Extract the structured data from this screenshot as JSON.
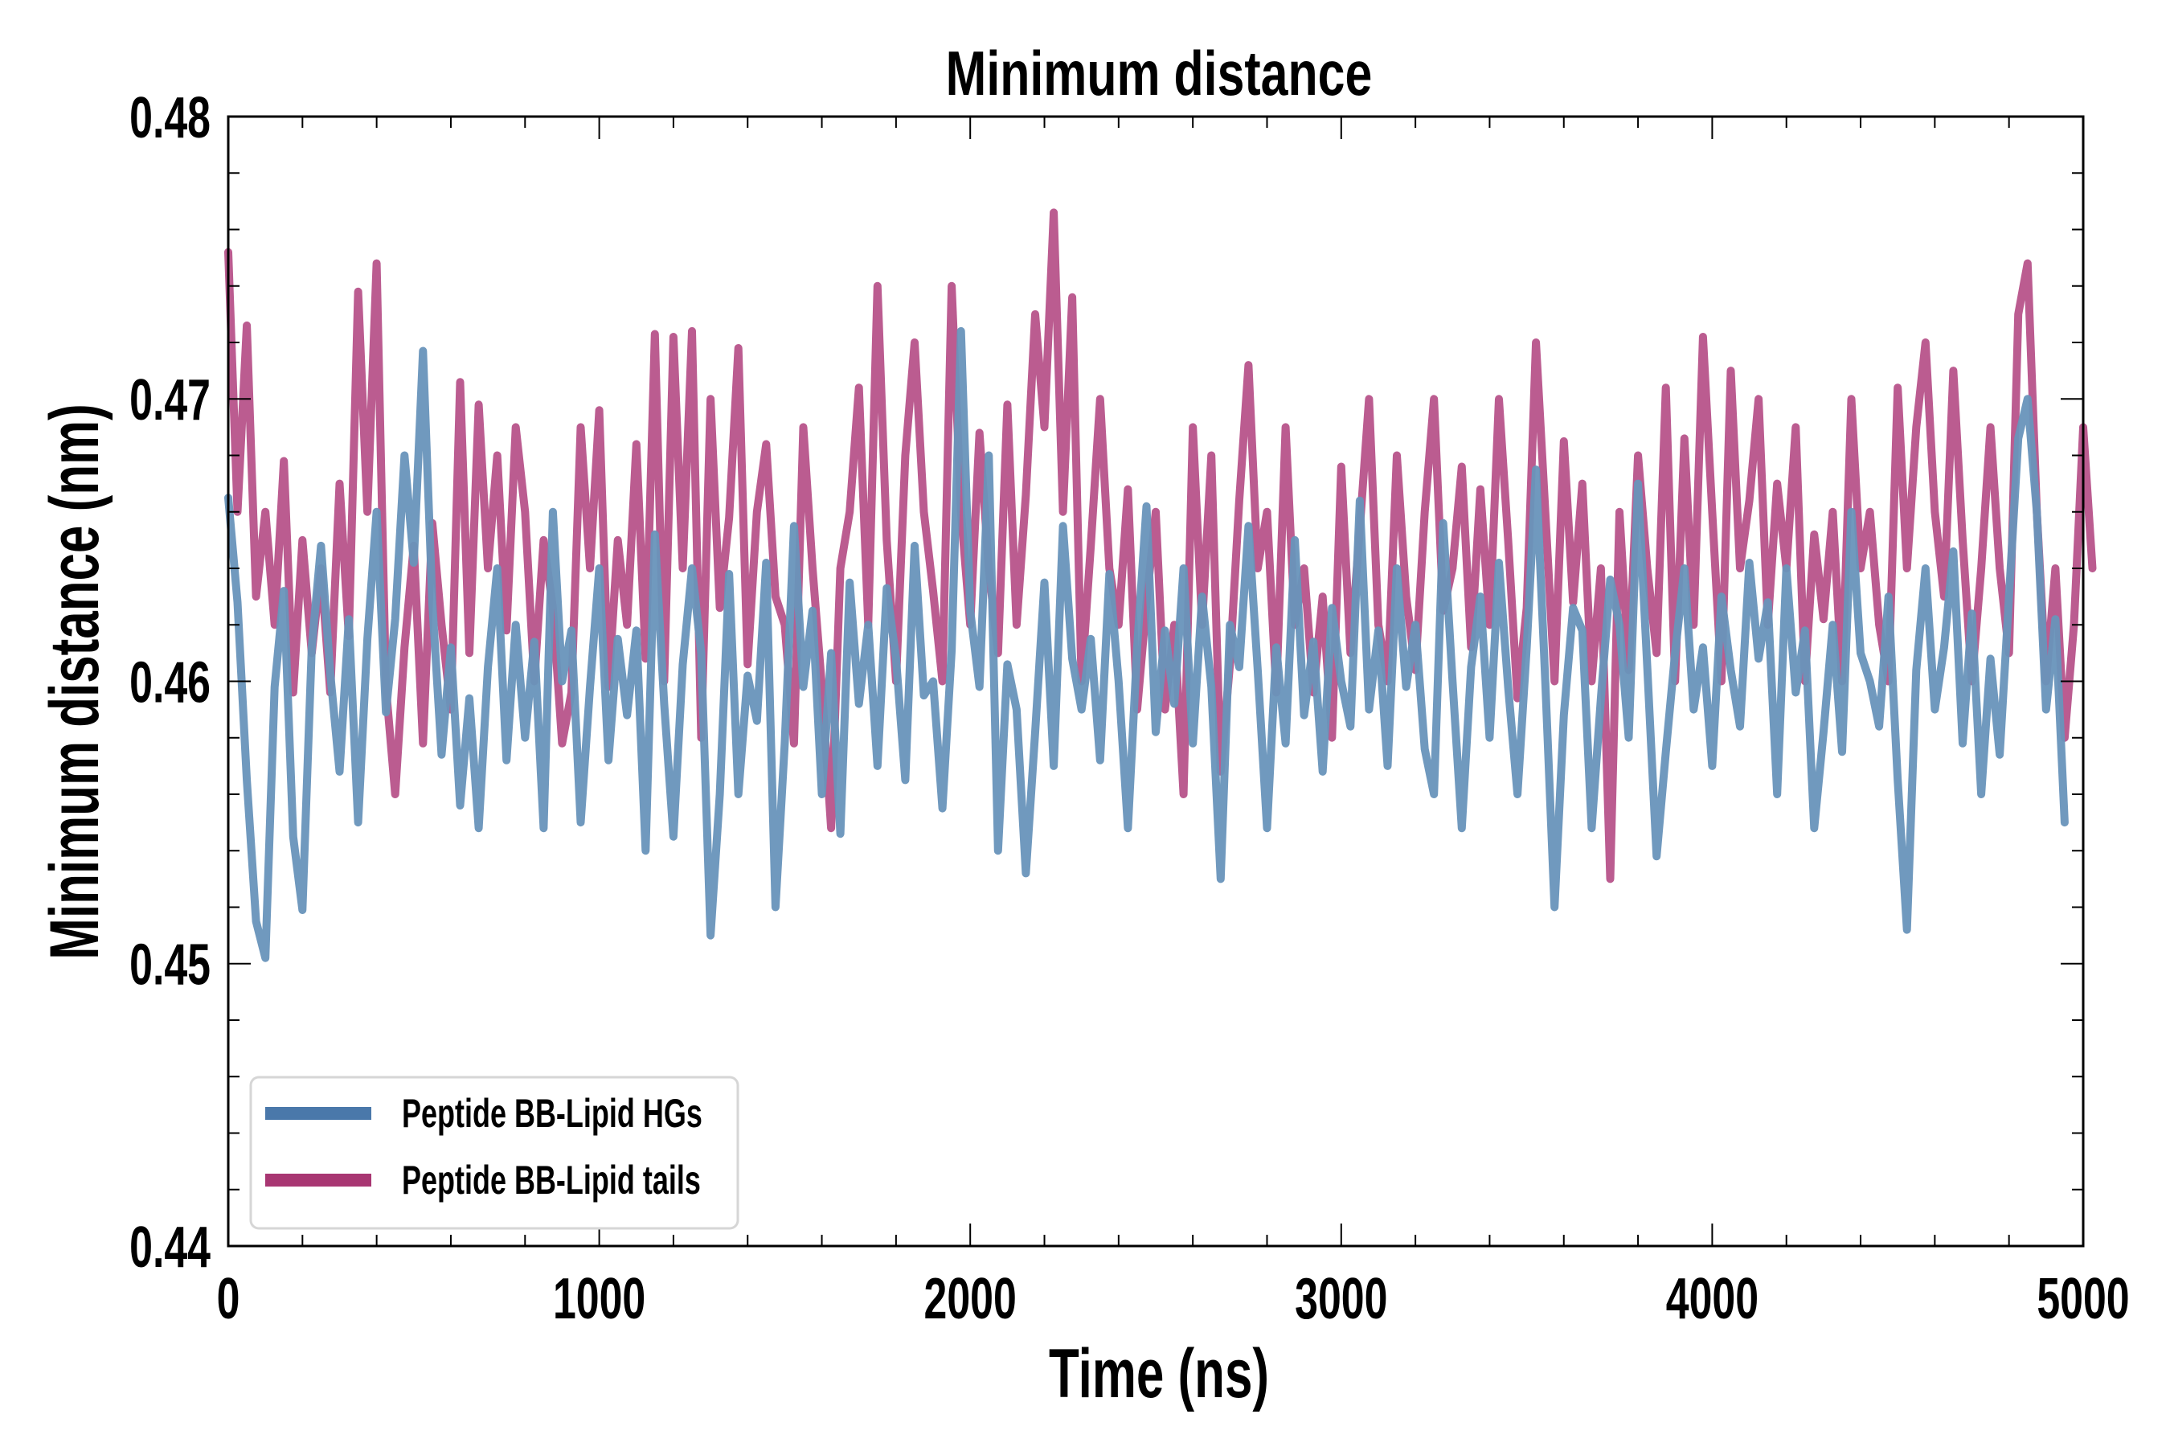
{
  "chart_data": {
    "type": "line",
    "title": "Minimum distance",
    "xlabel": "Time (ns)",
    "ylabel": "Minimum distance (nm)",
    "xlim": [
      0,
      5000
    ],
    "ylim": [
      0.44,
      0.48
    ],
    "xticks": [
      0,
      1000,
      2000,
      3000,
      4000,
      5000
    ],
    "xtick_labels": [
      "0",
      "1000",
      "2000",
      "3000",
      "4000",
      "5000"
    ],
    "yticks": [
      0.44,
      0.45,
      0.46,
      0.47,
      0.48
    ],
    "ytick_labels": [
      "0.44",
      "0.45",
      "0.46",
      "0.47",
      "0.48"
    ],
    "x_minor_step": 200,
    "y_minor_step": 0.002,
    "grid": false,
    "legend_position": "bottom-left",
    "x_step": 25,
    "series": [
      {
        "name": "Peptide BB-Lipid HGs",
        "color": "#4a78aa",
        "line_color": "#6893bb",
        "values": [
          0.4665,
          0.4628,
          0.4565,
          0.4515,
          0.4502,
          0.4598,
          0.4632,
          0.4545,
          0.4519,
          0.4612,
          0.4648,
          0.4603,
          0.4568,
          0.4622,
          0.455,
          0.4615,
          0.466,
          0.4589,
          0.4622,
          0.468,
          0.4642,
          0.4717,
          0.4628,
          0.4574,
          0.4612,
          0.4556,
          0.4594,
          0.4548,
          0.4605,
          0.464,
          0.4572,
          0.462,
          0.458,
          0.4614,
          0.4548,
          0.466,
          0.46,
          0.4618,
          0.455,
          0.4598,
          0.464,
          0.4572,
          0.4615,
          0.4588,
          0.4618,
          0.454,
          0.4652,
          0.4592,
          0.4545,
          0.4606,
          0.464,
          0.461,
          0.451,
          0.456,
          0.4638,
          0.456,
          0.4602,
          0.4586,
          0.4642,
          0.452,
          0.4578,
          0.4655,
          0.4598,
          0.4625,
          0.456,
          0.461,
          0.4546,
          0.4635,
          0.4592,
          0.462,
          0.457,
          0.4633,
          0.4608,
          0.4565,
          0.4648,
          0.4595,
          0.46,
          0.4555,
          0.4611,
          0.4724,
          0.4625,
          0.4598,
          0.468,
          0.454,
          0.4606,
          0.459,
          0.4532,
          0.4582,
          0.4635,
          0.457,
          0.4655,
          0.4608,
          0.459,
          0.4615,
          0.4572,
          0.4638,
          0.46,
          0.4548,
          0.4612,
          0.4662,
          0.4582,
          0.4618,
          0.4592,
          0.464,
          0.4578,
          0.463,
          0.4598,
          0.453,
          0.462,
          0.4605,
          0.4655,
          0.4604,
          0.4548,
          0.4612,
          0.4578,
          0.465,
          0.4588,
          0.4614,
          0.4568,
          0.4626,
          0.46,
          0.4584,
          0.4664,
          0.459,
          0.4618,
          0.457,
          0.464,
          0.4598,
          0.462,
          0.4576,
          0.456,
          0.4656,
          0.46,
          0.4548,
          0.4605,
          0.463,
          0.458,
          0.4642,
          0.4598,
          0.456,
          0.4612,
          0.4675,
          0.46,
          0.452,
          0.4588,
          0.4626,
          0.4618,
          0.4548,
          0.4594,
          0.4636,
          0.462,
          0.458,
          0.467,
          0.4605,
          0.4538,
          0.4575,
          0.461,
          0.464,
          0.459,
          0.4612,
          0.457,
          0.463,
          0.4604,
          0.4584,
          0.4642,
          0.4608,
          0.4628,
          0.456,
          0.464,
          0.4596,
          0.4618,
          0.4548,
          0.4582,
          0.462,
          0.4575,
          0.466,
          0.461,
          0.46,
          0.4584,
          0.463,
          0.4565,
          0.4512,
          0.4604,
          0.464,
          0.459,
          0.4612,
          0.4646,
          0.4578,
          0.4624,
          0.456,
          0.4608,
          0.4574,
          0.463,
          0.4686,
          0.47,
          0.466,
          0.459,
          0.4622,
          0.455
        ]
      },
      {
        "name": "Peptide BB-Lipid tails",
        "color": "#a83672",
        "line_color": "#bb5c90",
        "values": [
          0.4752,
          0.466,
          0.4726,
          0.463,
          0.466,
          0.462,
          0.4678,
          0.4596,
          0.465,
          0.461,
          0.464,
          0.4596,
          0.467,
          0.4616,
          0.4738,
          0.466,
          0.4748,
          0.4598,
          0.456,
          0.4612,
          0.4648,
          0.4578,
          0.4656,
          0.462,
          0.459,
          0.4706,
          0.461,
          0.4698,
          0.464,
          0.468,
          0.4618,
          0.469,
          0.466,
          0.46,
          0.465,
          0.4626,
          0.4578,
          0.4596,
          0.469,
          0.464,
          0.4696,
          0.4598,
          0.465,
          0.462,
          0.4684,
          0.4608,
          0.4723,
          0.46,
          0.4722,
          0.464,
          0.4724,
          0.458,
          0.47,
          0.4626,
          0.4658,
          0.4718,
          0.4606,
          0.466,
          0.4684,
          0.463,
          0.462,
          0.4578,
          0.469,
          0.464,
          0.4598,
          0.4548,
          0.464,
          0.466,
          0.4704,
          0.462,
          0.474,
          0.465,
          0.46,
          0.468,
          0.472,
          0.466,
          0.4632,
          0.46,
          0.474,
          0.466,
          0.462,
          0.4688,
          0.464,
          0.461,
          0.4698,
          0.462,
          0.4666,
          0.473,
          0.469,
          0.4766,
          0.466,
          0.4736,
          0.46,
          0.4648,
          0.47,
          0.464,
          0.462,
          0.4668,
          0.459,
          0.4628,
          0.466,
          0.459,
          0.462,
          0.456,
          0.469,
          0.462,
          0.468,
          0.4568,
          0.4606,
          0.4664,
          0.4712,
          0.464,
          0.466,
          0.4596,
          0.469,
          0.462,
          0.464,
          0.4596,
          0.463,
          0.458,
          0.4676,
          0.461,
          0.4654,
          0.47,
          0.462,
          0.46,
          0.468,
          0.463,
          0.4604,
          0.466,
          0.47,
          0.4625,
          0.464,
          0.4676,
          0.4612,
          0.4668,
          0.462,
          0.47,
          0.465,
          0.4594,
          0.4626,
          0.472,
          0.466,
          0.46,
          0.4685,
          0.4628,
          0.467,
          0.46,
          0.464,
          0.453,
          0.466,
          0.4604,
          0.468,
          0.464,
          0.461,
          0.4704,
          0.46,
          0.4686,
          0.462,
          0.4722,
          0.466,
          0.46,
          0.471,
          0.464,
          0.4664,
          0.47,
          0.462,
          0.467,
          0.464,
          0.469,
          0.46,
          0.4652,
          0.4622,
          0.466,
          0.46,
          0.47,
          0.464,
          0.466,
          0.462,
          0.46,
          0.4704,
          0.464,
          0.469,
          0.472,
          0.466,
          0.463,
          0.471,
          0.465,
          0.46,
          0.464,
          0.469,
          0.464,
          0.461,
          0.473,
          0.4748,
          0.466,
          0.46,
          0.464,
          0.458,
          0.462,
          0.469,
          0.464
        ]
      }
    ]
  }
}
